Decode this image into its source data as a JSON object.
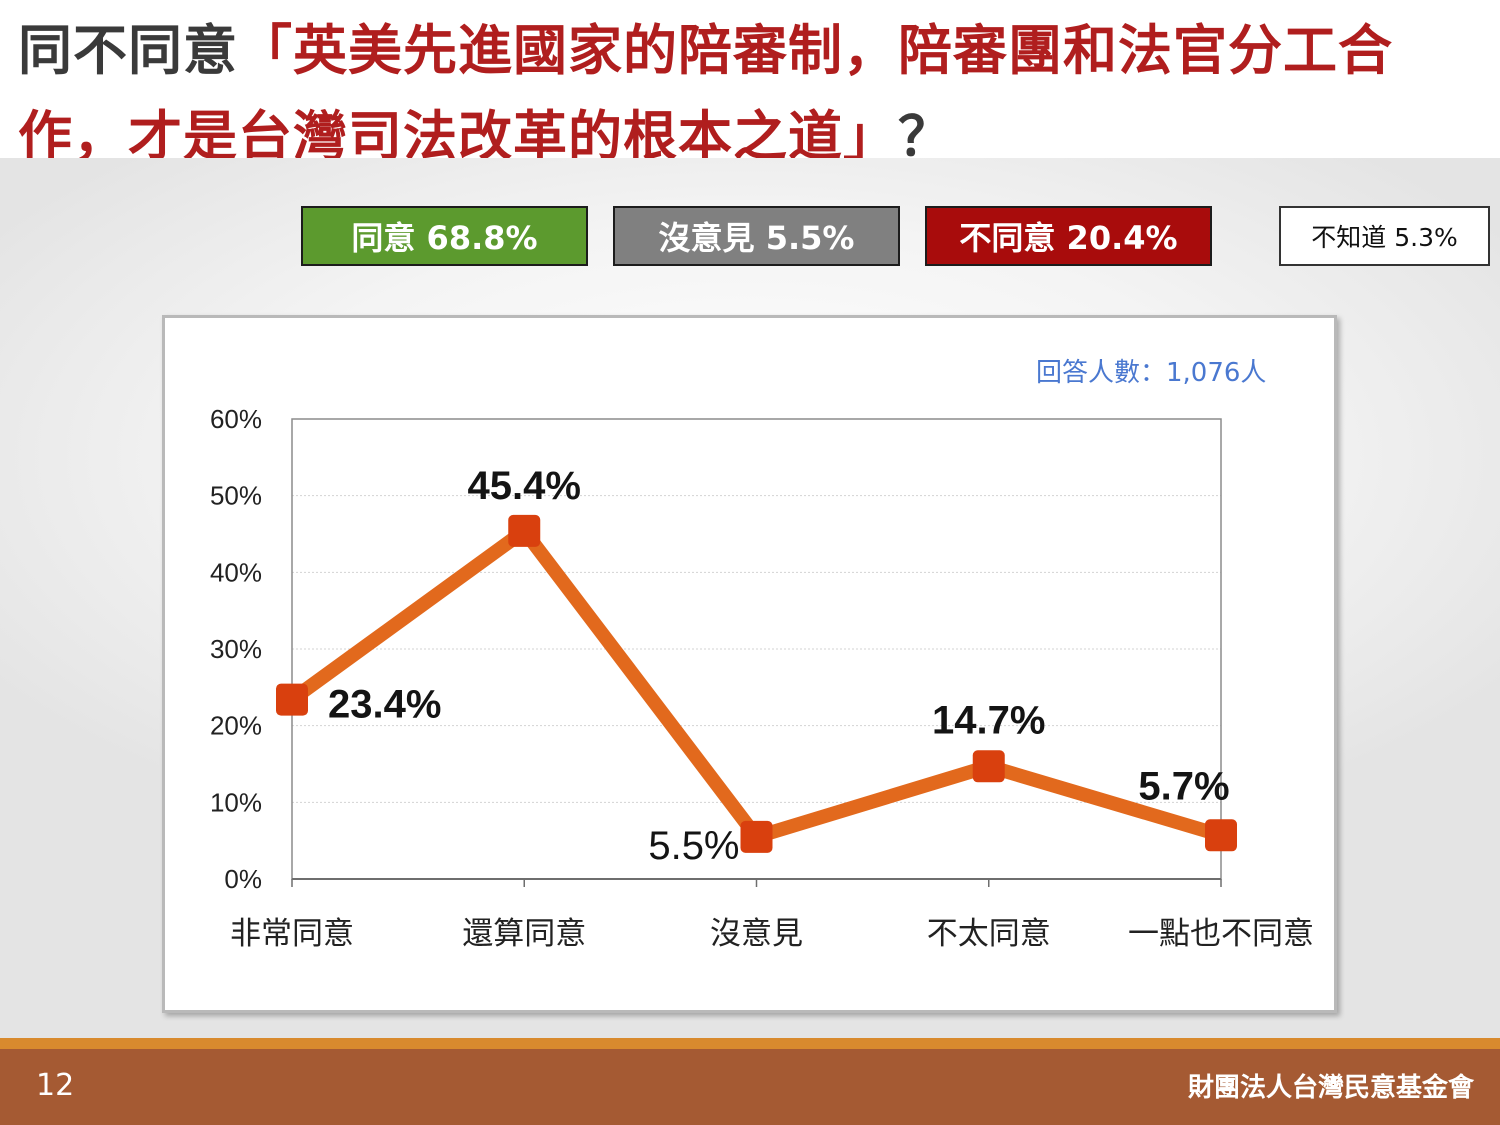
{
  "title": {
    "lead": "同不同意",
    "highlight": "「英美先進國家的陪審制，陪審團和法官分工合作，才是台灣司法改革的根本之道」",
    "tail": "？"
  },
  "summary": {
    "agree": "同意 68.8%",
    "neutral": "沒意見 5.5%",
    "disagree": "不同意 20.4%",
    "unknown": "不知道 5.3%"
  },
  "respondents": "回答人數：1,076人",
  "footer": {
    "page": "12",
    "org": "財團法人台灣民意基金會"
  },
  "colors": {
    "agree": "#5c9a2e",
    "neutral": "#808080",
    "disagree": "#a80c0c",
    "line": "#e2691d",
    "marker": "#d9400e",
    "title_highlight": "#b01e1e"
  },
  "chart_data": {
    "type": "line",
    "categories": [
      "非常同意",
      "還算同意",
      "沒意見",
      "不太同意",
      "一點也不同意"
    ],
    "values": [
      23.4,
      45.4,
      5.5,
      14.7,
      5.7
    ],
    "data_labels": [
      "23.4%",
      "45.4%",
      "5.5%",
      "14.7%",
      "5.7%"
    ],
    "ylim": [
      0,
      60
    ],
    "yticks": [
      0,
      10,
      20,
      30,
      40,
      50,
      60
    ],
    "ytick_labels": [
      "0%",
      "10%",
      "20%",
      "30%",
      "40%",
      "50%",
      "60%"
    ],
    "grid": true,
    "legend": "none"
  }
}
